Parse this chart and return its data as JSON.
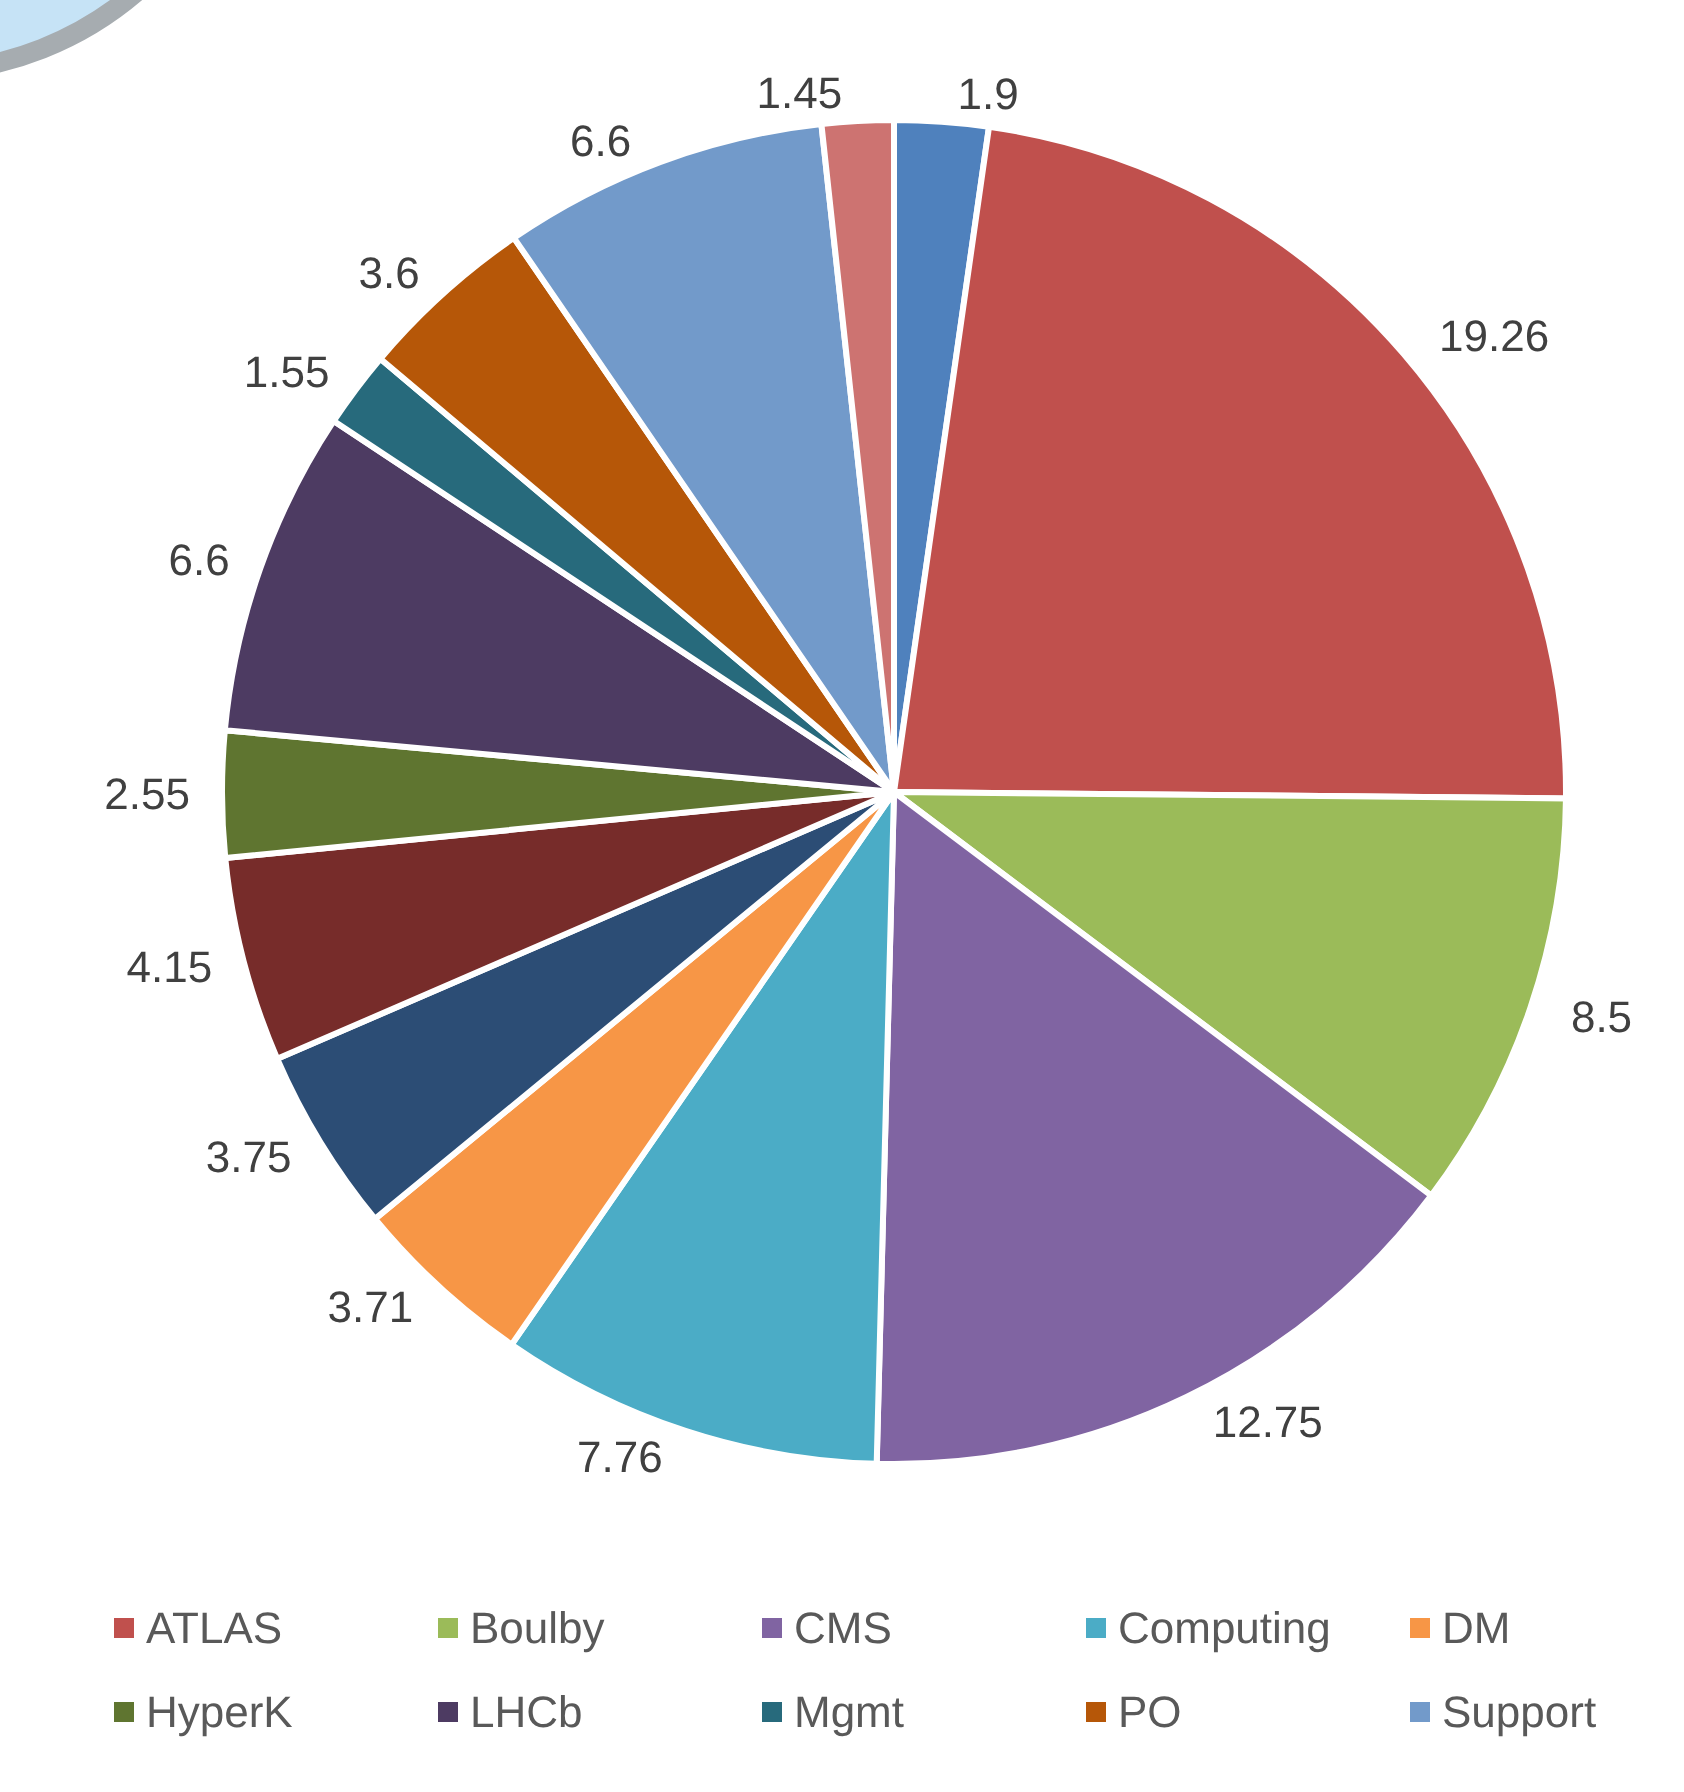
{
  "chart_data": {
    "type": "pie",
    "categories": [
      null,
      "ATLAS",
      "Boulby",
      "CMS",
      "Computing",
      "DM",
      null,
      null,
      "HyperK",
      "LHCb",
      "Mgmt",
      "PO",
      "Support",
      null
    ],
    "values": [
      1.9,
      19.26,
      8.5,
      12.75,
      7.76,
      3.71,
      3.75,
      4.15,
      2.55,
      6.6,
      1.55,
      3.6,
      6.6,
      1.45
    ],
    "colors": [
      "#4f81bd",
      "#c0504d",
      "#9bbb59",
      "#8064a2",
      "#4bacc6",
      "#f79646",
      "#2c4d75",
      "#772c2a",
      "#5f7530",
      "#4d3b62",
      "#276a7c",
      "#b65708",
      "#729aca",
      "#cd7371"
    ],
    "data_labels": true,
    "legend": "bottom"
  }
}
